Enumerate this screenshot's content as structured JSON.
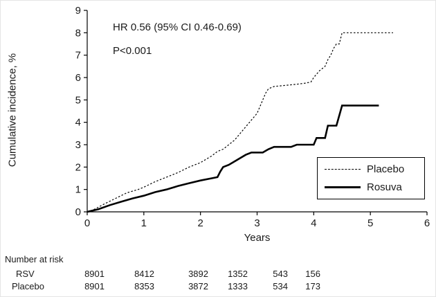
{
  "chart_data": {
    "type": "line",
    "title": "",
    "xlabel": "Years",
    "ylabel": "Cumulative incidence, %",
    "xlim": [
      0,
      6
    ],
    "ylim": [
      0,
      9
    ],
    "xticks": [
      0,
      1,
      2,
      3,
      4,
      5,
      6
    ],
    "yticks": [
      0,
      1,
      2,
      3,
      4,
      5,
      6,
      7,
      8,
      9
    ],
    "grid": false,
    "legend_position": "lower right",
    "annotations": {
      "hr": "HR 0.56 (95% CI 0.46-0.69)",
      "pvalue": "P<0.001"
    },
    "legend": [
      {
        "name": "Placebo",
        "style": "dashed"
      },
      {
        "name": "Rosuva",
        "style": "solid"
      }
    ],
    "series": [
      {
        "name": "Placebo",
        "style": "dashed",
        "points": [
          [
            0,
            0
          ],
          [
            0.1,
            0.08
          ],
          [
            0.3,
            0.35
          ],
          [
            0.5,
            0.6
          ],
          [
            0.7,
            0.85
          ],
          [
            0.9,
            1.0
          ],
          [
            1.0,
            1.1
          ],
          [
            1.2,
            1.35
          ],
          [
            1.4,
            1.55
          ],
          [
            1.6,
            1.75
          ],
          [
            1.8,
            2.0
          ],
          [
            2.0,
            2.2
          ],
          [
            2.1,
            2.35
          ],
          [
            2.2,
            2.5
          ],
          [
            2.3,
            2.7
          ],
          [
            2.4,
            2.8
          ],
          [
            2.5,
            3.0
          ],
          [
            2.6,
            3.2
          ],
          [
            2.7,
            3.5
          ],
          [
            2.8,
            3.8
          ],
          [
            2.9,
            4.1
          ],
          [
            3.0,
            4.4
          ],
          [
            3.05,
            4.7
          ],
          [
            3.1,
            5.0
          ],
          [
            3.15,
            5.3
          ],
          [
            3.2,
            5.5
          ],
          [
            3.3,
            5.6
          ],
          [
            3.5,
            5.65
          ],
          [
            3.7,
            5.7
          ],
          [
            3.85,
            5.75
          ],
          [
            3.95,
            5.8
          ],
          [
            4.0,
            6.0
          ],
          [
            4.1,
            6.3
          ],
          [
            4.2,
            6.5
          ],
          [
            4.25,
            6.8
          ],
          [
            4.3,
            7.0
          ],
          [
            4.35,
            7.3
          ],
          [
            4.4,
            7.5
          ],
          [
            4.45,
            7.5
          ],
          [
            4.5,
            8.0
          ],
          [
            5.4,
            8.0
          ]
        ]
      },
      {
        "name": "Rosuva",
        "style": "solid",
        "points": [
          [
            0,
            0
          ],
          [
            0.2,
            0.12
          ],
          [
            0.4,
            0.3
          ],
          [
            0.6,
            0.45
          ],
          [
            0.8,
            0.6
          ],
          [
            1.0,
            0.72
          ],
          [
            1.2,
            0.88
          ],
          [
            1.4,
            1.0
          ],
          [
            1.6,
            1.15
          ],
          [
            1.8,
            1.28
          ],
          [
            2.0,
            1.4
          ],
          [
            2.2,
            1.5
          ],
          [
            2.3,
            1.55
          ],
          [
            2.35,
            1.8
          ],
          [
            2.4,
            2.0
          ],
          [
            2.5,
            2.1
          ],
          [
            2.6,
            2.25
          ],
          [
            2.7,
            2.4
          ],
          [
            2.8,
            2.55
          ],
          [
            2.9,
            2.65
          ],
          [
            3.1,
            2.65
          ],
          [
            3.2,
            2.8
          ],
          [
            3.3,
            2.9
          ],
          [
            3.6,
            2.9
          ],
          [
            3.7,
            3.0
          ],
          [
            4.0,
            3.0
          ],
          [
            4.05,
            3.3
          ],
          [
            4.2,
            3.3
          ],
          [
            4.25,
            3.85
          ],
          [
            4.4,
            3.85
          ],
          [
            4.45,
            4.3
          ],
          [
            4.5,
            4.75
          ],
          [
            5.15,
            4.75
          ]
        ]
      }
    ]
  },
  "risk_table": {
    "title": "Number at risk",
    "rows": [
      {
        "label": "RSV",
        "values": [
          "8901",
          "8412",
          "3892",
          "1352",
          "543",
          "156"
        ]
      },
      {
        "label": "Placebo",
        "values": [
          "8901",
          "8353",
          "3872",
          "1333",
          "534",
          "173"
        ]
      }
    ]
  },
  "colors": {
    "line": "#000000",
    "background": "#ffffff"
  }
}
